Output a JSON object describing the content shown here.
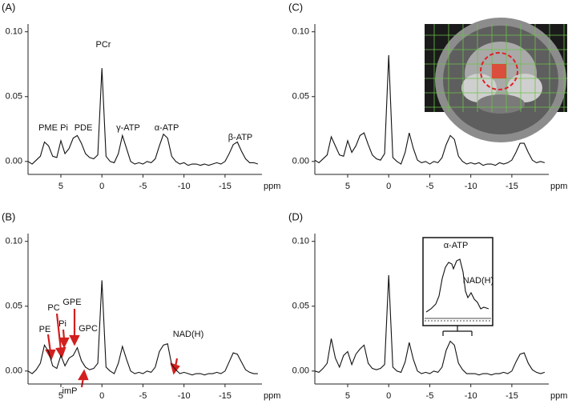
{
  "chart_data": [
    {
      "type": "line",
      "title": "(A)",
      "xlabel": "ppm",
      "x": [
        9,
        8.5,
        8,
        7.5,
        7,
        6.5,
        6,
        5.5,
        5,
        4.5,
        4,
        3.5,
        3,
        2.5,
        2,
        1.5,
        1,
        0.5,
        0,
        -0.5,
        -1,
        -1.5,
        -2,
        -2.5,
        -3,
        -3.5,
        -4,
        -4.5,
        -5,
        -5.5,
        -6,
        -6.5,
        -7,
        -7.5,
        -8,
        -8.5,
        -9,
        -9.5,
        -10,
        -10.5,
        -11,
        -11.5,
        -12,
        -12.5,
        -13,
        -13.5,
        -14,
        -14.5,
        -15,
        -15.5,
        -16,
        -16.5,
        -17,
        -17.5,
        -18,
        -18.5,
        -19
      ],
      "series": [
        {
          "color": "#111111",
          "values": [
            0,
            -0.002,
            0.001,
            0.004,
            0.015,
            0.012,
            0.004,
            0.003,
            0.016,
            0.006,
            0.01,
            0.018,
            0.02,
            0.014,
            0.006,
            0.003,
            0.002,
            0.005,
            0.072,
            0.004,
            0,
            -0.001,
            0.006,
            0.02,
            0.01,
            0,
            -0.002,
            -0.001,
            -0.002,
            0,
            -0.001,
            0.002,
            0.012,
            0.021,
            0.018,
            0.004,
            0,
            -0.002,
            -0.001,
            -0.003,
            -0.002,
            -0.002,
            -0.003,
            -0.002,
            -0.003,
            -0.002,
            -0.001,
            -0.002,
            0,
            0.006,
            0.013,
            0.015,
            0.008,
            0.002,
            -0.001,
            -0.001,
            -0.002
          ]
        }
      ],
      "xlim": [
        9,
        -19.5
      ],
      "ylim": [
        -0.01,
        0.106
      ],
      "xticks": [
        5,
        0,
        -5,
        -10,
        -15
      ],
      "yticks": [
        {
          "value": 0,
          "label": "0.00"
        },
        {
          "value": 0.05,
          "label": "0.05"
        },
        {
          "value": 0.1,
          "label": "0.10"
        }
      ],
      "annotations": [
        "PCr",
        "PME",
        "Pi",
        "PDE",
        "γ-ATP",
        "α-ATP",
        "β-ATP"
      ]
    },
    {
      "type": "line",
      "title": "(B)",
      "xlabel": "ppm",
      "x": [
        9,
        8.5,
        8,
        7.5,
        7,
        6.5,
        6,
        5.5,
        5,
        4.5,
        4,
        3.5,
        3,
        2.5,
        2,
        1.5,
        1,
        0.5,
        0,
        -0.5,
        -1,
        -1.5,
        -2,
        -2.5,
        -3,
        -3.5,
        -4,
        -4.5,
        -5,
        -5.5,
        -6,
        -6.5,
        -7,
        -7.5,
        -8,
        -8.5,
        -9,
        -9.5,
        -10,
        -10.5,
        -11,
        -11.5,
        -12,
        -12.5,
        -13,
        -13.5,
        -14,
        -14.5,
        -15,
        -15.5,
        -16,
        -16.5,
        -17,
        -17.5,
        -18,
        -18.5,
        -19
      ],
      "series": [
        {
          "color": "#111111",
          "values": [
            0,
            -0.002,
            0.001,
            0.006,
            0.02,
            0.015,
            0.004,
            0.002,
            0.012,
            0.004,
            0.01,
            0.012,
            0.018,
            0.008,
            0.003,
            0.001,
            0.002,
            0.006,
            0.07,
            0.003,
            0,
            -0.002,
            0.006,
            0.019,
            0.009,
            0,
            -0.002,
            -0.001,
            -0.002,
            0,
            -0.001,
            0.003,
            0.015,
            0.02,
            0.021,
            0.005,
            0.001,
            -0.002,
            -0.001,
            -0.002,
            -0.003,
            -0.002,
            -0.002,
            -0.003,
            -0.002,
            -0.002,
            -0.001,
            -0.002,
            0,
            0.007,
            0.014,
            0.013,
            0.007,
            0.001,
            -0.001,
            -0.002,
            -0.002
          ]
        }
      ],
      "xlim": [
        9,
        -19.5
      ],
      "ylim": [
        -0.01,
        0.106
      ],
      "xticks": [
        5,
        0,
        -5,
        -10,
        -15
      ],
      "yticks": [
        {
          "value": 0,
          "label": "0.00"
        },
        {
          "value": 0.05,
          "label": "0.05"
        },
        {
          "value": 0.1,
          "label": "0.10"
        }
      ],
      "annotations": [
        "PE",
        "PC",
        "Pi",
        "GPE",
        "GPC",
        "imP",
        "NAD(H)"
      ]
    },
    {
      "type": "line",
      "title": "(C)",
      "xlabel": "ppm",
      "x": [
        9,
        8.5,
        8,
        7.5,
        7,
        6.5,
        6,
        5.5,
        5,
        4.5,
        4,
        3.5,
        3,
        2.5,
        2,
        1.5,
        1,
        0.5,
        0,
        -0.5,
        -1,
        -1.5,
        -2,
        -2.5,
        -3,
        -3.5,
        -4,
        -4.5,
        -5,
        -5.5,
        -6,
        -6.5,
        -7,
        -7.5,
        -8,
        -8.5,
        -9,
        -9.5,
        -10,
        -10.5,
        -11,
        -11.5,
        -12,
        -12.5,
        -13,
        -13.5,
        -14,
        -14.5,
        -15,
        -15.5,
        -16,
        -16.5,
        -17,
        -17.5,
        -18,
        -18.5,
        -19
      ],
      "series": [
        {
          "color": "#111111",
          "values": [
            0.001,
            -0.001,
            0.002,
            0.005,
            0.019,
            0.012,
            0.005,
            0.004,
            0.016,
            0.007,
            0.012,
            0.02,
            0.022,
            0.013,
            0.005,
            0.002,
            0.001,
            0.006,
            0.082,
            0.003,
            0,
            -0.002,
            0.007,
            0.022,
            0.01,
            0.001,
            -0.001,
            0,
            -0.002,
            0,
            -0.001,
            0.003,
            0.013,
            0.02,
            0.017,
            0.004,
            0,
            -0.002,
            -0.001,
            -0.002,
            -0.001,
            -0.003,
            -0.002,
            -0.002,
            -0.003,
            -0.001,
            -0.002,
            -0.001,
            0.001,
            0.007,
            0.014,
            0.014,
            0.007,
            0.001,
            -0.001,
            0,
            -0.001
          ]
        }
      ],
      "xlim": [
        9,
        -19.5
      ],
      "ylim": [
        -0.01,
        0.106
      ],
      "xticks": [
        5,
        0,
        -5,
        -10,
        -15
      ],
      "yticks": [
        {
          "value": 0,
          "label": "0.00"
        },
        {
          "value": 0.05,
          "label": "0.05"
        },
        {
          "value": 0.1,
          "label": "0.10"
        }
      ],
      "annotations": []
    },
    {
      "type": "line",
      "title": "(D)",
      "xlabel": "ppm",
      "x": [
        9,
        8.5,
        8,
        7.5,
        7,
        6.5,
        6,
        5.5,
        5,
        4.5,
        4,
        3.5,
        3,
        2.5,
        2,
        1.5,
        1,
        0.5,
        0,
        -0.5,
        -1,
        -1.5,
        -2,
        -2.5,
        -3,
        -3.5,
        -4,
        -4.5,
        -5,
        -5.5,
        -6,
        -6.5,
        -7,
        -7.5,
        -8,
        -8.5,
        -9,
        -9.5,
        -10,
        -10.5,
        -11,
        -11.5,
        -12,
        -12.5,
        -13,
        -13.5,
        -14,
        -14.5,
        -15,
        -15.5,
        -16,
        -16.5,
        -17,
        -17.5,
        -18,
        -18.5,
        -19
      ],
      "series": [
        {
          "color": "#111111",
          "values": [
            0,
            -0.001,
            0.002,
            0.006,
            0.025,
            0.01,
            0.003,
            0.012,
            0.015,
            0.005,
            0.013,
            0.017,
            0.02,
            0.006,
            0.002,
            0.001,
            0.002,
            0.005,
            0.074,
            0.003,
            0,
            -0.001,
            0.007,
            0.022,
            0.009,
            0,
            -0.002,
            -0.001,
            -0.002,
            0,
            -0.001,
            0.003,
            0.016,
            0.023,
            0.02,
            0.006,
            0.001,
            -0.002,
            -0.002,
            -0.002,
            -0.003,
            -0.002,
            -0.002,
            -0.003,
            -0.002,
            -0.002,
            -0.001,
            -0.002,
            0,
            0.007,
            0.013,
            0.014,
            0.006,
            0.001,
            -0.001,
            -0.002,
            -0.001
          ]
        }
      ],
      "xlim": [
        9,
        -19.5
      ],
      "ylim": [
        -0.01,
        0.106
      ],
      "xticks": [
        5,
        0,
        -5,
        -10,
        -15
      ],
      "yticks": [
        {
          "value": 0,
          "label": "0.00"
        },
        {
          "value": 0.05,
          "label": "0.05"
        },
        {
          "value": 0.1,
          "label": "0.10"
        }
      ],
      "annotations": [
        "α-ATP",
        "NAD(H)"
      ]
    }
  ]
}
